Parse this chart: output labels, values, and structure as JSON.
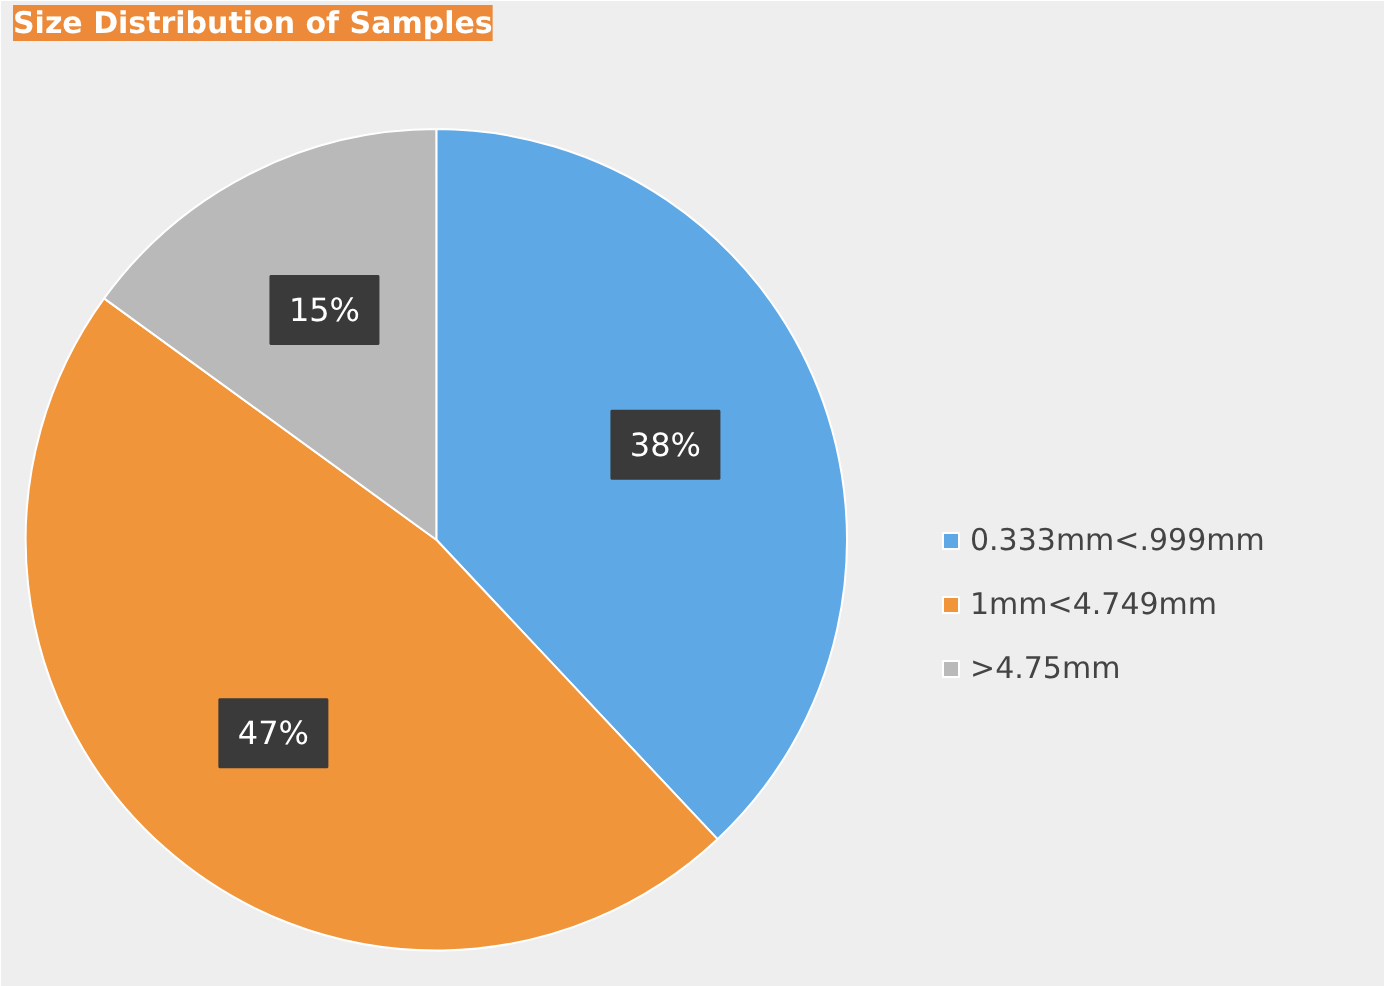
{
  "chart_data": {
    "type": "pie",
    "title": "Size Distribution of Samples",
    "categories": [
      "0.333mm<.999mm",
      "1mm<4.749mm",
      ">4.75mm"
    ],
    "values": [
      38,
      47,
      15
    ],
    "colors": [
      "#5fa8e6",
      "#f0953a",
      "#b9b9b9"
    ],
    "value_labels": [
      "38%",
      "47%",
      "15%"
    ],
    "legend": "right"
  }
}
